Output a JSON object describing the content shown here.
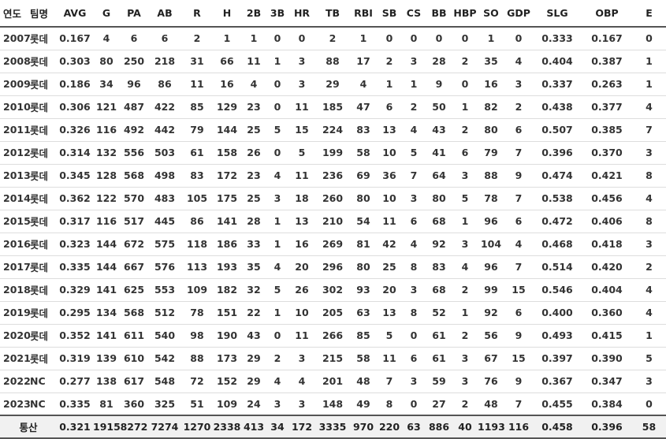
{
  "columns": [
    "연도",
    "팀명",
    "AVG",
    "G",
    "PA",
    "AB",
    "R",
    "H",
    "2B",
    "3B",
    "HR",
    "TB",
    "RBI",
    "SB",
    "CS",
    "BB",
    "HBP",
    "SO",
    "GDP",
    "SLG",
    "OBP",
    "E"
  ],
  "rows": [
    [
      "2007",
      "롯데",
      "0.167",
      "4",
      "6",
      "6",
      "2",
      "1",
      "1",
      "0",
      "0",
      "2",
      "1",
      "0",
      "0",
      "0",
      "0",
      "1",
      "0",
      "0.333",
      "0.167",
      "0"
    ],
    [
      "2008",
      "롯데",
      "0.303",
      "80",
      "250",
      "218",
      "31",
      "66",
      "11",
      "1",
      "3",
      "88",
      "17",
      "2",
      "3",
      "28",
      "2",
      "35",
      "4",
      "0.404",
      "0.387",
      "1"
    ],
    [
      "2009",
      "롯데",
      "0.186",
      "34",
      "96",
      "86",
      "11",
      "16",
      "4",
      "0",
      "3",
      "29",
      "4",
      "1",
      "1",
      "9",
      "0",
      "16",
      "3",
      "0.337",
      "0.263",
      "1"
    ],
    [
      "2010",
      "롯데",
      "0.306",
      "121",
      "487",
      "422",
      "85",
      "129",
      "23",
      "0",
      "11",
      "185",
      "47",
      "6",
      "2",
      "50",
      "1",
      "82",
      "2",
      "0.438",
      "0.377",
      "4"
    ],
    [
      "2011",
      "롯데",
      "0.326",
      "116",
      "492",
      "442",
      "79",
      "144",
      "25",
      "5",
      "15",
      "224",
      "83",
      "13",
      "4",
      "43",
      "2",
      "80",
      "6",
      "0.507",
      "0.385",
      "7"
    ],
    [
      "2012",
      "롯데",
      "0.314",
      "132",
      "556",
      "503",
      "61",
      "158",
      "26",
      "0",
      "5",
      "199",
      "58",
      "10",
      "5",
      "41",
      "6",
      "79",
      "7",
      "0.396",
      "0.370",
      "3"
    ],
    [
      "2013",
      "롯데",
      "0.345",
      "128",
      "568",
      "498",
      "83",
      "172",
      "23",
      "4",
      "11",
      "236",
      "69",
      "36",
      "7",
      "64",
      "3",
      "88",
      "9",
      "0.474",
      "0.421",
      "8"
    ],
    [
      "2014",
      "롯데",
      "0.362",
      "122",
      "570",
      "483",
      "105",
      "175",
      "25",
      "3",
      "18",
      "260",
      "80",
      "10",
      "3",
      "80",
      "5",
      "78",
      "7",
      "0.538",
      "0.456",
      "4"
    ],
    [
      "2015",
      "롯데",
      "0.317",
      "116",
      "517",
      "445",
      "86",
      "141",
      "28",
      "1",
      "13",
      "210",
      "54",
      "11",
      "6",
      "68",
      "1",
      "96",
      "6",
      "0.472",
      "0.406",
      "8"
    ],
    [
      "2016",
      "롯데",
      "0.323",
      "144",
      "672",
      "575",
      "118",
      "186",
      "33",
      "1",
      "16",
      "269",
      "81",
      "42",
      "4",
      "92",
      "3",
      "104",
      "4",
      "0.468",
      "0.418",
      "3"
    ],
    [
      "2017",
      "롯데",
      "0.335",
      "144",
      "667",
      "576",
      "113",
      "193",
      "35",
      "4",
      "20",
      "296",
      "80",
      "25",
      "8",
      "83",
      "4",
      "96",
      "7",
      "0.514",
      "0.420",
      "2"
    ],
    [
      "2018",
      "롯데",
      "0.329",
      "141",
      "625",
      "553",
      "109",
      "182",
      "32",
      "5",
      "26",
      "302",
      "93",
      "20",
      "3",
      "68",
      "2",
      "99",
      "15",
      "0.546",
      "0.404",
      "4"
    ],
    [
      "2019",
      "롯데",
      "0.295",
      "134",
      "568",
      "512",
      "78",
      "151",
      "22",
      "1",
      "10",
      "205",
      "63",
      "13",
      "8",
      "52",
      "1",
      "92",
      "6",
      "0.400",
      "0.360",
      "4"
    ],
    [
      "2020",
      "롯데",
      "0.352",
      "141",
      "611",
      "540",
      "98",
      "190",
      "43",
      "0",
      "11",
      "266",
      "85",
      "5",
      "0",
      "61",
      "2",
      "56",
      "9",
      "0.493",
      "0.415",
      "1"
    ],
    [
      "2021",
      "롯데",
      "0.319",
      "139",
      "610",
      "542",
      "88",
      "173",
      "29",
      "2",
      "3",
      "215",
      "58",
      "11",
      "6",
      "61",
      "3",
      "67",
      "15",
      "0.397",
      "0.390",
      "5"
    ],
    [
      "2022",
      "NC",
      "0.277",
      "138",
      "617",
      "548",
      "72",
      "152",
      "29",
      "4",
      "4",
      "201",
      "48",
      "7",
      "3",
      "59",
      "3",
      "76",
      "9",
      "0.367",
      "0.347",
      "3"
    ],
    [
      "2023",
      "NC",
      "0.335",
      "81",
      "360",
      "325",
      "51",
      "109",
      "24",
      "3",
      "3",
      "148",
      "49",
      "8",
      "0",
      "27",
      "2",
      "48",
      "7",
      "0.455",
      "0.384",
      "0"
    ]
  ],
  "total": {
    "label": "통산",
    "values": [
      "0.321",
      "1915",
      "8272",
      "7274",
      "1270",
      "2338",
      "413",
      "34",
      "172",
      "3335",
      "970",
      "220",
      "63",
      "886",
      "40",
      "1193",
      "116",
      "0.458",
      "0.396",
      "58"
    ]
  }
}
